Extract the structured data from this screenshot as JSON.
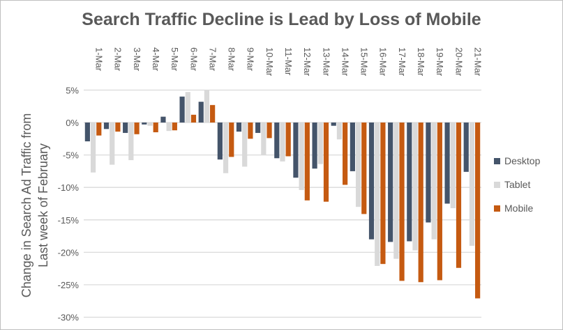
{
  "chart_data": {
    "type": "bar",
    "title": "Search Traffic Decline is Lead by Loss of Mobile",
    "xlabel": "",
    "ylabel": "Change in Search Ad Traffic from Last week of February",
    "ylabel_lines": [
      "Change in Search Ad Traffic from",
      "Last week of February"
    ],
    "ylim": [
      -30,
      5
    ],
    "yticks": [
      5,
      0,
      -5,
      -10,
      -15,
      -20,
      -25,
      -30
    ],
    "ytick_labels": [
      "5%",
      "0%",
      "-5%",
      "-10%",
      "-15%",
      "-20%",
      "-25%",
      "-30%"
    ],
    "grid": true,
    "legend_position": "right",
    "categories": [
      "1-Mar",
      "2-Mar",
      "3-Mar",
      "4-Mar",
      "5-Mar",
      "6-Mar",
      "7-Mar",
      "8-Mar",
      "9-Mar",
      "10-Mar",
      "11-Mar",
      "12-Mar",
      "13-Mar",
      "14-Mar",
      "15-Mar",
      "16-Mar",
      "17-Mar",
      "18-Mar",
      "19-Mar",
      "20-Mar",
      "21-Mar"
    ],
    "series": [
      {
        "name": "Desktop",
        "color": "#44546a",
        "values": [
          -2.9,
          -1.0,
          -1.6,
          -0.3,
          0.9,
          4.0,
          3.2,
          -5.7,
          -1.4,
          -1.6,
          -5.5,
          -8.5,
          -7.1,
          -0.5,
          -7.5,
          -18.0,
          -18.4,
          -18.3,
          -15.4,
          -12.5,
          -7.6
        ]
      },
      {
        "name": "Tablet",
        "color": "#d9d9d9",
        "values": [
          -7.7,
          -6.5,
          -5.8,
          -0.5,
          -1.3,
          4.7,
          5.0,
          -7.8,
          -6.8,
          -5.0,
          -6.0,
          -10.4,
          -6.4,
          -2.6,
          -13.0,
          -22.1,
          -21.0,
          -19.7,
          -18.0,
          -13.2,
          -19.0
        ]
      },
      {
        "name": "Mobile",
        "color": "#c55a11",
        "values": [
          -2.0,
          -1.4,
          -1.8,
          -1.5,
          -1.2,
          1.2,
          2.7,
          -5.3,
          -2.5,
          -2.4,
          -5.2,
          -12.0,
          -12.2,
          -9.6,
          -14.1,
          -21.8,
          -24.4,
          -24.6,
          -24.3,
          -22.4,
          -27.1
        ]
      }
    ]
  }
}
